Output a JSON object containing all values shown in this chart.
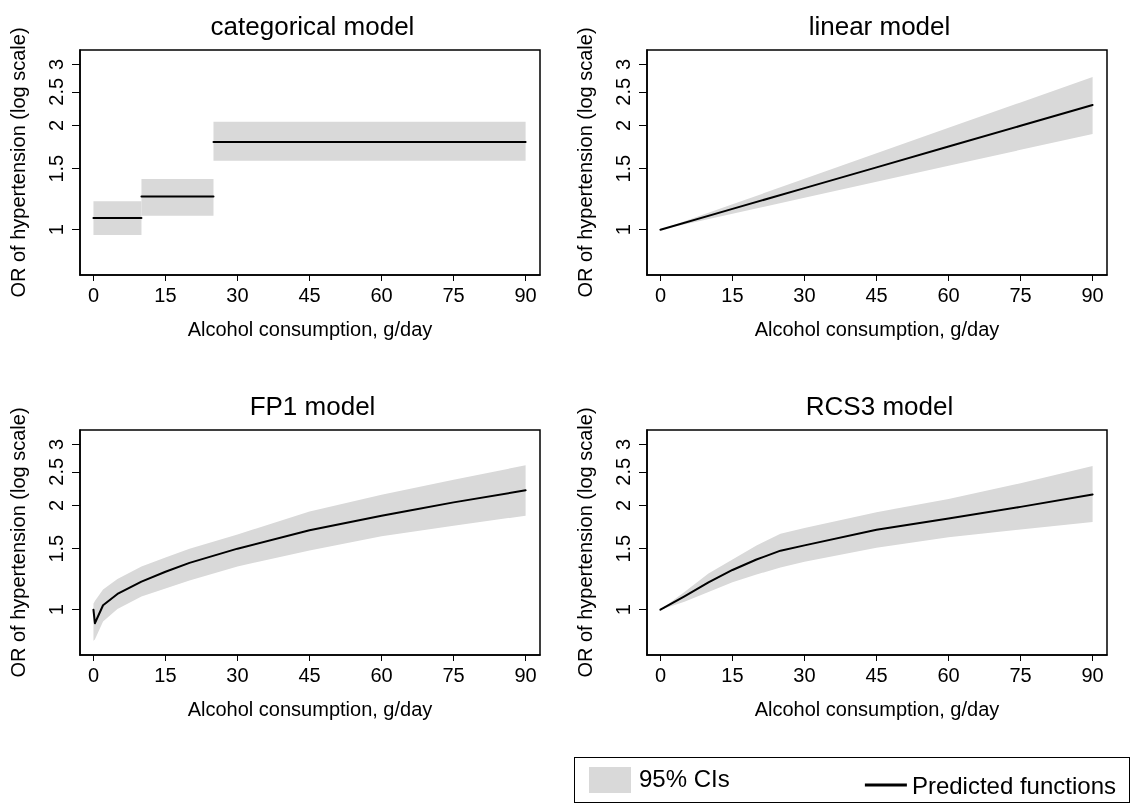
{
  "chart_data": [
    {
      "type": "line",
      "title": "categorical model",
      "xlabel": "Alcohol consumption, g/day",
      "ylabel": "OR of hypertension (log scale)",
      "log": "y",
      "grid": false,
      "xlim": [
        -2.8,
        93
      ],
      "xticks": [
        0,
        15,
        30,
        45,
        60,
        75,
        90
      ],
      "ylim": [
        0.74,
        3.3
      ],
      "yticks": [
        1,
        1.5,
        2,
        2.5,
        3
      ],
      "series": [
        {
          "color": "#000000",
          "x": [
            0,
            10
          ],
          "values": [
            1.081,
            1.081
          ],
          "lower": [
            0.965,
            0.965
          ],
          "upper": [
            1.208,
            1.208
          ]
        },
        {
          "color": "#000000",
          "x": [
            10,
            25
          ],
          "values": [
            1.246,
            1.246
          ],
          "lower": [
            1.097,
            1.097
          ],
          "upper": [
            1.4,
            1.4
          ]
        },
        {
          "color": "#000000",
          "x": [
            25,
            90
          ],
          "values": [
            1.79,
            1.79
          ],
          "lower": [
            1.58,
            1.58
          ],
          "upper": [
            2.05,
            2.05
          ]
        }
      ]
    },
    {
      "type": "line",
      "title": "linear model",
      "xlabel": "Alcohol consumption, g/day",
      "ylabel": "OR of hypertension (log scale)",
      "log": "y",
      "grid": false,
      "xlim": [
        -2.8,
        93
      ],
      "xticks": [
        0,
        15,
        30,
        45,
        60,
        75,
        90
      ],
      "ylim": [
        0.74,
        3.3
      ],
      "yticks": [
        1,
        1.5,
        2,
        2.5,
        3
      ],
      "x": [
        0,
        15,
        30,
        45,
        60,
        75,
        90
      ],
      "series": [
        {
          "color": "#000000",
          "values": [
            1,
            1.148,
            1.318,
            1.513,
            1.737,
            1.994,
            2.29
          ],
          "lower": [
            1,
            1.112,
            1.236,
            1.375,
            1.529,
            1.7,
            1.89
          ],
          "upper": [
            1,
            1.184,
            1.402,
            1.661,
            1.967,
            2.33,
            2.76
          ]
        }
      ]
    },
    {
      "type": "line",
      "title": "FP1 model",
      "xlabel": "Alcohol consumption, g/day",
      "ylabel": "OR of hypertension (log scale)",
      "log": "y",
      "grid": false,
      "xlim": [
        -2.8,
        93
      ],
      "xticks": [
        0,
        15,
        30,
        45,
        60,
        75,
        90
      ],
      "ylim": [
        0.74,
        3.3
      ],
      "yticks": [
        1,
        1.5,
        2,
        2.5,
        3
      ],
      "x": [
        0,
        0.3,
        2,
        5,
        10,
        15,
        20,
        30,
        45,
        60,
        75,
        90
      ],
      "series": [
        {
          "color": "#000000",
          "values": [
            1.0,
            0.914,
            1.03,
            1.11,
            1.205,
            1.287,
            1.365,
            1.5,
            1.695,
            1.867,
            2.04,
            2.21
          ],
          "lower": [
            0.813,
            0.82,
            0.925,
            1.005,
            1.091,
            1.152,
            1.213,
            1.333,
            1.481,
            1.63,
            1.748,
            1.867
          ],
          "upper": [
            1.04,
            1.06,
            1.144,
            1.227,
            1.333,
            1.414,
            1.5,
            1.648,
            1.92,
            2.145,
            2.37,
            2.61
          ]
        }
      ]
    },
    {
      "type": "line",
      "title": "RCS3 model",
      "xlabel": "Alcohol consumption, g/day",
      "ylabel": "OR of hypertension (log scale)",
      "log": "y",
      "grid": false,
      "legend": "bottom right",
      "xlim": [
        -2.8,
        93
      ],
      "xticks": [
        0,
        15,
        30,
        45,
        60,
        75,
        90
      ],
      "ylim": [
        0.74,
        3.3
      ],
      "yticks": [
        1,
        1.5,
        2,
        2.5,
        3
      ],
      "x": [
        0,
        5,
        10,
        15,
        20,
        25,
        30,
        45,
        60,
        75,
        90
      ],
      "annotations": [
        "95% CIs"
      ],
      "series": [
        {
          "name": "Predicted functions",
          "color": "#000000",
          "values": [
            1,
            1.093,
            1.199,
            1.302,
            1.396,
            1.48,
            1.533,
            1.702,
            1.833,
            1.98,
            2.15
          ],
          "lower": [
            1,
            1.055,
            1.124,
            1.199,
            1.263,
            1.323,
            1.374,
            1.508,
            1.617,
            1.703,
            1.792
          ],
          "upper": [
            1,
            1.124,
            1.271,
            1.395,
            1.533,
            1.655,
            1.722,
            1.912,
            2.085,
            2.316,
            2.6
          ]
        }
      ]
    }
  ]
}
